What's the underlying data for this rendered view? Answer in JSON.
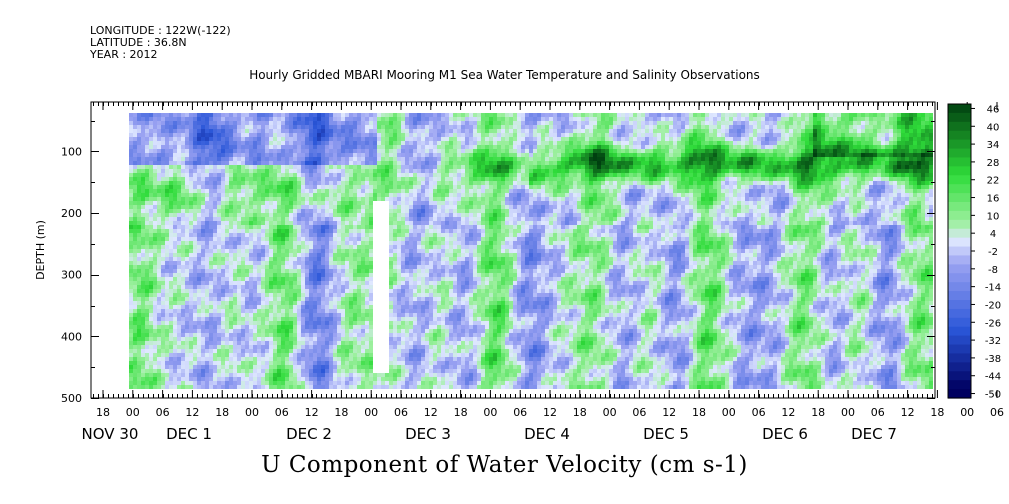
{
  "header": {
    "longitude": "LONGITUDE : 122W(-122)",
    "latitude": "LATITUDE : 36.8N",
    "year": "YEAR : 2012"
  },
  "title": "Hourly Gridded MBARI Mooring M1 Sea Water Temperature and Salinity Observations",
  "bottom_label": "U Component of Water Velocity (cm s-1)",
  "chart_data": {
    "type": "heatmap",
    "title": "Hourly Gridded MBARI Mooring M1 Sea Water Temperature and Salinity Observations",
    "xlabel": "",
    "ylabel": "DEPTH (m)",
    "y_axis": {
      "ticks": [
        100,
        200,
        300,
        400,
        500
      ],
      "range": [
        20,
        500
      ],
      "inverted": true
    },
    "x_axis": {
      "hour_ticks": [
        "18",
        "00",
        "06",
        "12",
        "18",
        "00",
        "06",
        "12",
        "18",
        "00",
        "06",
        "12",
        "18",
        "00",
        "06",
        "12",
        "18",
        "00",
        "06",
        "12",
        "18",
        "00",
        "06",
        "12",
        "18",
        "00",
        "06",
        "12",
        "18",
        "00",
        "06",
        "12"
      ],
      "day_labels": [
        "NOV 30",
        "DEC 1",
        "DEC 2",
        "DEC 3",
        "DEC 4",
        "DEC 5",
        "DEC 6",
        "DEC 7"
      ]
    },
    "colorbar": {
      "labels": [
        "46",
        "40",
        "34",
        "28",
        "22",
        "16",
        "10",
        "4",
        "-2",
        "-8",
        "-14",
        "-20",
        "-26",
        "-32",
        "-38",
        "-44",
        "-50"
      ],
      "range": [
        -50,
        46
      ]
    },
    "colors": {
      "neg_dark": "#000060",
      "neg_mid": "#2a56d8",
      "neg_light": "#9aa2f2",
      "zero": "#dfe8ff",
      "pos_light": "#9ef0a0",
      "pos_mid": "#2fdc3a",
      "pos_dark": "#004010"
    }
  }
}
